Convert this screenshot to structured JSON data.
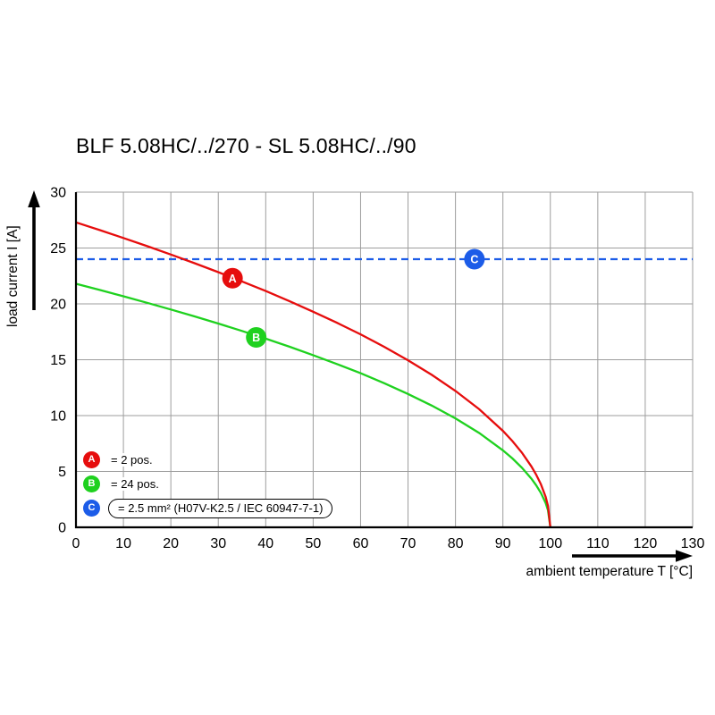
{
  "chart_data": {
    "type": "line",
    "title": "BLF 5.08HC/../270 - SL 5.08HC/../90",
    "xlabel": "ambient temperature T [°C]",
    "ylabel": "load current I [A]",
    "xlim": [
      0,
      130
    ],
    "ylim": [
      0,
      30
    ],
    "x_ticks": [
      0,
      10,
      20,
      30,
      40,
      50,
      60,
      70,
      80,
      90,
      100,
      110,
      120,
      130
    ],
    "y_ticks": [
      0,
      5,
      10,
      15,
      20,
      25,
      30
    ],
    "grid": true,
    "grid_color": "#9d9d9d",
    "axis_color": "#000000",
    "legend_position": "bottom-left-inside",
    "series": [
      {
        "name": "A",
        "label": "= 2 pos.",
        "color": "#e60d0d",
        "style": "solid",
        "marker": {
          "t": 33,
          "i": 22.3,
          "letter": "A"
        },
        "points": [
          [
            0,
            27.3
          ],
          [
            5,
            26.61
          ],
          [
            10,
            25.9
          ],
          [
            15,
            25.17
          ],
          [
            20,
            24.42
          ],
          [
            25,
            23.64
          ],
          [
            30,
            22.84
          ],
          [
            35,
            22.01
          ],
          [
            40,
            21.15
          ],
          [
            45,
            20.25
          ],
          [
            50,
            19.3
          ],
          [
            55,
            18.31
          ],
          [
            60,
            17.27
          ],
          [
            65,
            16.15
          ],
          [
            70,
            14.95
          ],
          [
            75,
            13.65
          ],
          [
            80,
            12.21
          ],
          [
            85,
            10.57
          ],
          [
            90,
            8.63
          ],
          [
            92,
            7.72
          ],
          [
            94,
            6.69
          ],
          [
            96,
            5.46
          ],
          [
            97,
            4.73
          ],
          [
            98,
            3.86
          ],
          [
            99,
            2.73
          ],
          [
            99.5,
            1.93
          ],
          [
            100,
            0
          ]
        ]
      },
      {
        "name": "B",
        "label": "= 24 pos.",
        "color": "#1fd11f",
        "style": "solid",
        "marker": {
          "t": 38,
          "i": 17,
          "letter": "B"
        },
        "points": [
          [
            0,
            21.8
          ],
          [
            5,
            21.25
          ],
          [
            10,
            20.68
          ],
          [
            15,
            20.1
          ],
          [
            20,
            19.5
          ],
          [
            25,
            18.88
          ],
          [
            30,
            18.24
          ],
          [
            35,
            17.58
          ],
          [
            40,
            16.89
          ],
          [
            45,
            16.17
          ],
          [
            50,
            15.41
          ],
          [
            55,
            14.62
          ],
          [
            60,
            13.79
          ],
          [
            65,
            12.9
          ],
          [
            70,
            11.94
          ],
          [
            75,
            10.9
          ],
          [
            80,
            9.75
          ],
          [
            85,
            8.44
          ],
          [
            90,
            6.89
          ],
          [
            92,
            6.17
          ],
          [
            94,
            5.34
          ],
          [
            96,
            4.36
          ],
          [
            97,
            3.78
          ],
          [
            98,
            3.08
          ],
          [
            99,
            2.18
          ],
          [
            99.5,
            1.54
          ],
          [
            100,
            0
          ]
        ]
      },
      {
        "name": "C",
        "label": "= 2.5 mm² (H07V-K2.5 / IEC 60947-7-1)",
        "color": "#1c5ce8",
        "style": "dashed",
        "boxed_legend": true,
        "marker": {
          "t": 84,
          "i": 24,
          "letter": "C"
        },
        "points": [
          [
            0,
            24
          ],
          [
            130,
            24
          ]
        ]
      }
    ]
  }
}
